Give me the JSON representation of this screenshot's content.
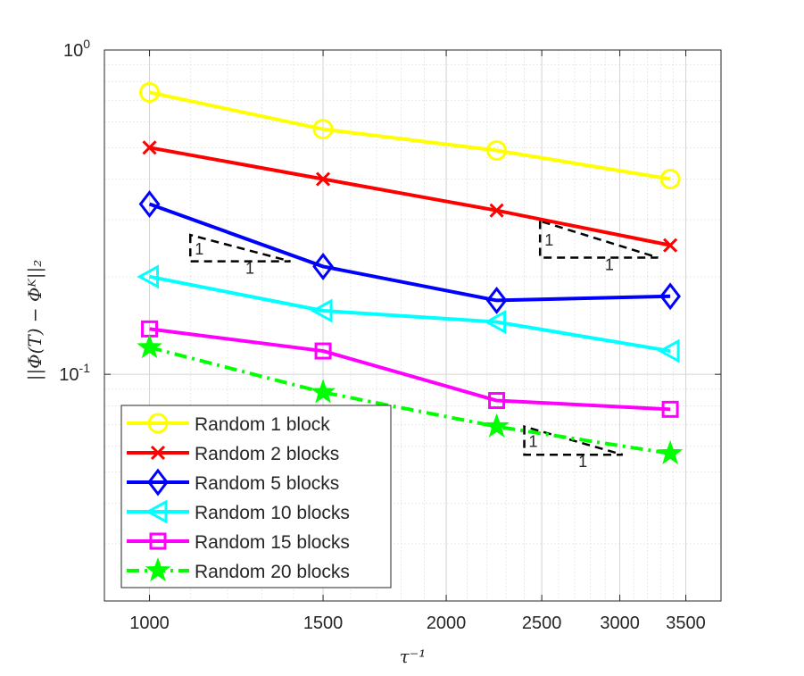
{
  "chart_data": {
    "type": "line",
    "xscale": "log",
    "yscale": "log",
    "xlim": [
      900,
      3800
    ],
    "ylim": [
      0.02,
      1
    ],
    "xticks": [
      1000,
      1500,
      2000,
      2500,
      3000,
      3500
    ],
    "xtick_labels": [
      "1000",
      "1500",
      "2000",
      "2500",
      "3000",
      "3500"
    ],
    "yticks": [
      0.1,
      1
    ],
    "ytick_labels": [
      {
        "base": "10",
        "exp": "-1"
      },
      {
        "base": "10",
        "exp": "0"
      }
    ],
    "xlabel": "τ⁻¹",
    "ylabel": "||Φ(T) − Φᴷ||₂",
    "grid": true,
    "minor_grid": true,
    "legend_position": "bottom-left",
    "x": [
      1000,
      1500,
      2250,
      3375
    ],
    "series": [
      {
        "name": "Random 1 block",
        "color": "#ffff00",
        "marker": "circle",
        "dash": "solid",
        "values": [
          0.74,
          0.57,
          0.49,
          0.4
        ]
      },
      {
        "name": "Random 2 blocks",
        "color": "#ff0000",
        "marker": "x",
        "dash": "solid",
        "values": [
          0.5,
          0.4,
          0.32,
          0.25
        ]
      },
      {
        "name": "Random 5 blocks",
        "color": "#0000ff",
        "marker": "diamond",
        "dash": "solid",
        "values": [
          0.335,
          0.215,
          0.169,
          0.174
        ]
      },
      {
        "name": "Random 10 blocks",
        "color": "#00ffff",
        "marker": "triangle-left",
        "dash": "solid",
        "values": [
          0.2,
          0.157,
          0.145,
          0.118
        ]
      },
      {
        "name": "Random 15 blocks",
        "color": "#ff00ff",
        "marker": "square",
        "dash": "solid",
        "values": [
          0.138,
          0.118,
          0.083,
          0.078
        ]
      },
      {
        "name": "Random 20 blocks",
        "color": "#00ff00",
        "marker": "star",
        "dash": "dashdot",
        "values": [
          0.121,
          0.088,
          0.069,
          0.057
        ]
      }
    ],
    "annotations": [
      {
        "type": "slope-triangle",
        "label_rise": "1",
        "label_run": "1",
        "color": "#000000",
        "x0": 1100,
        "x1": 1390,
        "y_top": 0.269,
        "y_bottom": 0.223
      },
      {
        "type": "slope-triangle",
        "label_rise": "1",
        "label_run": "1",
        "color": "#000000",
        "x0": 2490,
        "x1": 3280,
        "y_top": 0.297,
        "y_bottom": 0.229
      },
      {
        "type": "slope-triangle",
        "label_rise": "1",
        "label_run": "1",
        "color": "#000000",
        "x0": 2400,
        "x1": 3020,
        "y_top": 0.069,
        "y_bottom": 0.0565
      }
    ]
  }
}
